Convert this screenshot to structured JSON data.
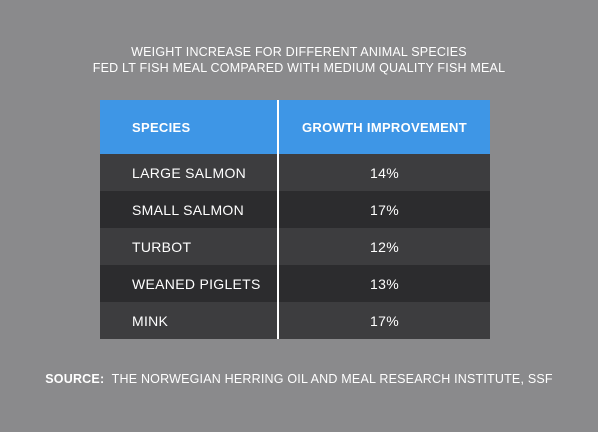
{
  "title": {
    "line1": "WEIGHT INCREASE FOR DIFFERENT ANIMAL SPECIES",
    "line2": "FED LT FISH MEAL COMPARED WITH MEDIUM QUALITY FISH MEAL"
  },
  "colors": {
    "header": "#3e96e6",
    "row_light": "#3d3d3f",
    "row_dark": "#2c2c2e",
    "background": "#8a8a8c"
  },
  "chart_data": {
    "type": "table",
    "columns": [
      "SPECIES",
      "GROWTH IMPROVEMENT"
    ],
    "rows": [
      [
        "LARGE SALMON",
        "14%"
      ],
      [
        "SMALL SALMON",
        "17%"
      ],
      [
        "TURBOT",
        "12%"
      ],
      [
        "WEANED PIGLETS",
        "13%"
      ],
      [
        "MINK",
        "17%"
      ]
    ]
  },
  "source": {
    "label": "SOURCE:",
    "text": "THE NORWEGIAN HERRING OIL AND MEAL RESEARCH INSTITUTE, SSF"
  }
}
